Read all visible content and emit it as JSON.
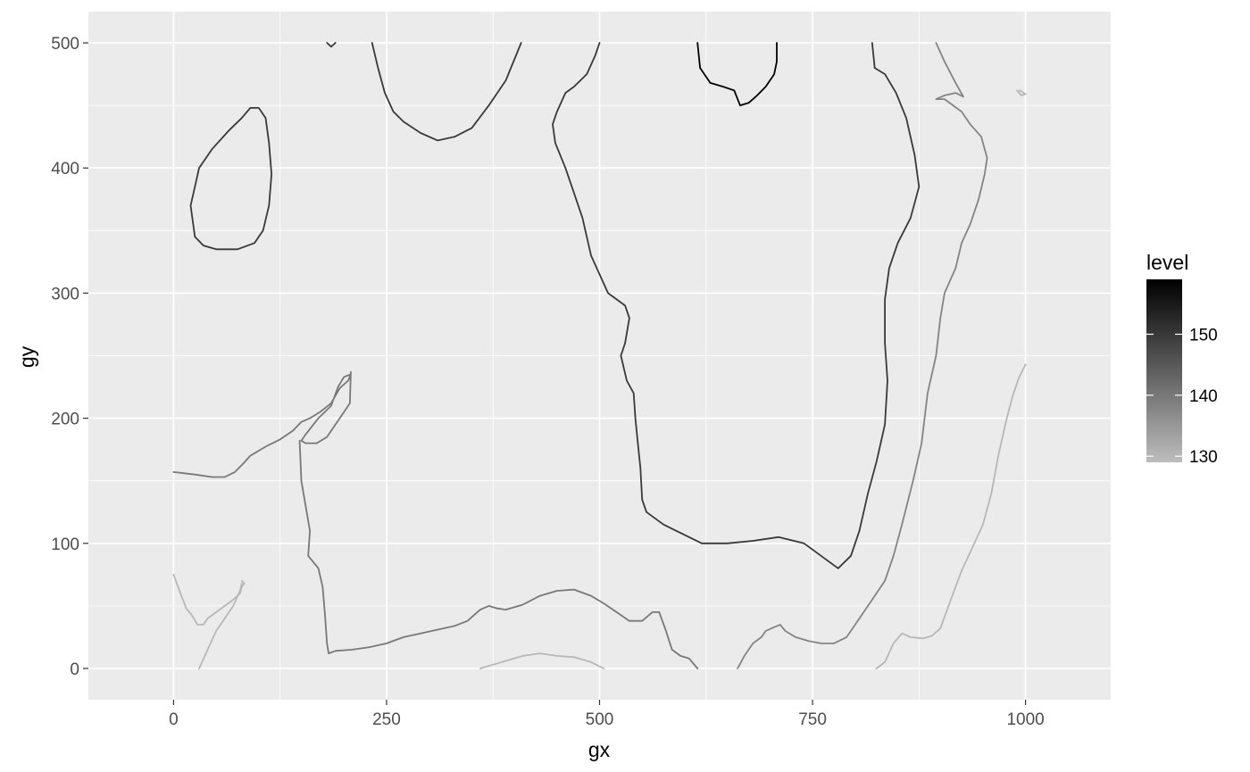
{
  "chart_data": {
    "type": "line",
    "subtype": "contour",
    "title": "",
    "xlabel": "gx",
    "ylabel": "gy",
    "xlim": [
      -100,
      1100
    ],
    "ylim": [
      -25,
      525
    ],
    "x_ticks": [
      0,
      250,
      500,
      750,
      1000
    ],
    "x_tick_labels": [
      "0",
      "250",
      "500",
      "750",
      "1000"
    ],
    "y_ticks": [
      0,
      100,
      200,
      300,
      400,
      500
    ],
    "y_tick_labels": [
      "0",
      "100",
      "200",
      "300",
      "400",
      "500"
    ],
    "grid": true,
    "background": "#ebebeb",
    "grid_color": "#ffffff",
    "legend": {
      "title": "level",
      "placement": "right",
      "type": "colorbar",
      "range": [
        129,
        159
      ],
      "ticks": [
        130,
        140,
        150
      ],
      "tick_labels": [
        "130",
        "140",
        "150"
      ],
      "low_color": "#bdbdbd",
      "high_color": "#000000"
    },
    "series": [
      {
        "level": 130,
        "points": [
          [
            0,
            75
          ],
          [
            8,
            60
          ],
          [
            15,
            48
          ],
          [
            22,
            42
          ],
          [
            28,
            35
          ],
          [
            35,
            35
          ],
          [
            40,
            40
          ],
          [
            50,
            45
          ],
          [
            60,
            50
          ],
          [
            70,
            55
          ],
          [
            78,
            60
          ],
          [
            80,
            65
          ],
          [
            83,
            68
          ],
          [
            80,
            70
          ]
        ]
      },
      {
        "level": 130,
        "points": [
          [
            30,
            0
          ],
          [
            40,
            15
          ],
          [
            50,
            30
          ],
          [
            60,
            40
          ],
          [
            70,
            50
          ],
          [
            78,
            62
          ],
          [
            80,
            68
          ]
        ]
      },
      {
        "level": 130,
        "points": [
          [
            360,
            0
          ],
          [
            375,
            3
          ],
          [
            390,
            6
          ],
          [
            410,
            10
          ],
          [
            430,
            12
          ],
          [
            450,
            10
          ],
          [
            470,
            9
          ],
          [
            490,
            5
          ],
          [
            505,
            0
          ]
        ]
      },
      {
        "level": 130,
        "points": [
          [
            825,
            0
          ],
          [
            835,
            5
          ],
          [
            845,
            20
          ],
          [
            855,
            28
          ],
          [
            865,
            25
          ],
          [
            880,
            24
          ],
          [
            890,
            26
          ],
          [
            900,
            32
          ],
          [
            915,
            60
          ],
          [
            925,
            78
          ],
          [
            940,
            100
          ],
          [
            950,
            115
          ],
          [
            960,
            140
          ],
          [
            968,
            170
          ],
          [
            978,
            200
          ],
          [
            985,
            218
          ],
          [
            992,
            232
          ],
          [
            1000,
            243
          ]
        ]
      },
      {
        "level": 130,
        "points": [
          [
            993,
            462
          ],
          [
            1000,
            459
          ],
          [
            995,
            458
          ],
          [
            990,
            462
          ]
        ]
      },
      {
        "level": 138,
        "points": [
          [
            895,
            500
          ],
          [
            905,
            485
          ],
          [
            918,
            468
          ],
          [
            927,
            457
          ],
          [
            918,
            460
          ],
          [
            905,
            458
          ],
          [
            895,
            455
          ],
          [
            905,
            455
          ],
          [
            915,
            450
          ],
          [
            925,
            445
          ],
          [
            935,
            435
          ],
          [
            948,
            425
          ],
          [
            955,
            408
          ],
          [
            952,
            395
          ],
          [
            945,
            375
          ],
          [
            935,
            355
          ],
          [
            925,
            340
          ],
          [
            918,
            320
          ],
          [
            905,
            300
          ],
          [
            900,
            280
          ],
          [
            895,
            250
          ],
          [
            885,
            220
          ],
          [
            878,
            180
          ],
          [
            868,
            150
          ],
          [
            855,
            115
          ],
          [
            845,
            90
          ],
          [
            835,
            70
          ],
          [
            815,
            50
          ],
          [
            800,
            35
          ],
          [
            790,
            25
          ],
          [
            775,
            20
          ],
          [
            760,
            20
          ],
          [
            745,
            22
          ],
          [
            730,
            25
          ],
          [
            718,
            30
          ],
          [
            712,
            35
          ],
          [
            705,
            33
          ],
          [
            695,
            30
          ],
          [
            690,
            25
          ],
          [
            680,
            20
          ],
          [
            670,
            10
          ],
          [
            662,
            0
          ]
        ]
      },
      {
        "level": 140,
        "points": [
          [
            0,
            157
          ],
          [
            25,
            155
          ],
          [
            45,
            153
          ],
          [
            60,
            153
          ],
          [
            72,
            157
          ],
          [
            82,
            164
          ],
          [
            90,
            170
          ],
          [
            100,
            174
          ],
          [
            110,
            178
          ],
          [
            125,
            183
          ],
          [
            140,
            190
          ],
          [
            150,
            197
          ],
          [
            160,
            200
          ],
          [
            172,
            205
          ],
          [
            185,
            212
          ],
          [
            195,
            224
          ],
          [
            205,
            230
          ],
          [
            208,
            235
          ],
          [
            200,
            233
          ],
          [
            193,
            225
          ],
          [
            185,
            210
          ],
          [
            170,
            200
          ],
          [
            155,
            187
          ],
          [
            150,
            182
          ],
          [
            155,
            180
          ],
          [
            168,
            180
          ],
          [
            180,
            185
          ],
          [
            190,
            195
          ],
          [
            200,
            205
          ],
          [
            207,
            212
          ],
          [
            208,
            237
          ]
        ]
      },
      {
        "level": 140,
        "points": [
          [
            148,
            182
          ],
          [
            150,
            150
          ],
          [
            155,
            130
          ],
          [
            160,
            110
          ],
          [
            158,
            90
          ],
          [
            170,
            80
          ],
          [
            175,
            65
          ],
          [
            178,
            40
          ],
          [
            180,
            20
          ],
          [
            182,
            12
          ],
          [
            190,
            14
          ],
          [
            210,
            15
          ],
          [
            230,
            17
          ],
          [
            250,
            20
          ],
          [
            270,
            25
          ],
          [
            290,
            28
          ],
          [
            310,
            31
          ],
          [
            330,
            34
          ],
          [
            345,
            38
          ],
          [
            360,
            47
          ],
          [
            370,
            50
          ],
          [
            380,
            48
          ],
          [
            390,
            47
          ],
          [
            410,
            51
          ],
          [
            430,
            58
          ],
          [
            450,
            62
          ],
          [
            470,
            63
          ],
          [
            490,
            58
          ],
          [
            505,
            52
          ],
          [
            520,
            45
          ],
          [
            535,
            38
          ],
          [
            550,
            38
          ],
          [
            562,
            45
          ],
          [
            570,
            45
          ],
          [
            578,
            30
          ],
          [
            585,
            15
          ],
          [
            595,
            10
          ],
          [
            605,
            8
          ],
          [
            615,
            0
          ]
        ]
      },
      {
        "level": 150,
        "points": [
          [
            20,
            370
          ],
          [
            25,
            345
          ],
          [
            35,
            338
          ],
          [
            50,
            335
          ],
          [
            75,
            335
          ],
          [
            95,
            340
          ],
          [
            105,
            350
          ],
          [
            112,
            370
          ],
          [
            115,
            395
          ],
          [
            112,
            420
          ],
          [
            108,
            440
          ],
          [
            100,
            448
          ],
          [
            90,
            448
          ],
          [
            80,
            440
          ],
          [
            65,
            430
          ],
          [
            45,
            415
          ],
          [
            30,
            400
          ],
          [
            25,
            385
          ],
          [
            20,
            370
          ]
        ]
      },
      {
        "level": 150,
        "points": [
          [
            190,
            500
          ],
          [
            185,
            497
          ],
          [
            180,
            500
          ]
        ]
      },
      {
        "level": 150,
        "points": [
          [
            233,
            500
          ],
          [
            240,
            480
          ],
          [
            248,
            460
          ],
          [
            258,
            445
          ],
          [
            270,
            437
          ],
          [
            290,
            428
          ],
          [
            310,
            422
          ],
          [
            330,
            425
          ],
          [
            350,
            432
          ],
          [
            370,
            450
          ],
          [
            390,
            470
          ],
          [
            408,
            500
          ]
        ]
      },
      {
        "level": 150,
        "points": [
          [
            500,
            500
          ],
          [
            495,
            490
          ],
          [
            485,
            475
          ],
          [
            470,
            465
          ],
          [
            460,
            460
          ],
          [
            450,
            445
          ],
          [
            445,
            435
          ],
          [
            448,
            420
          ],
          [
            460,
            400
          ],
          [
            470,
            380
          ],
          [
            480,
            360
          ],
          [
            490,
            330
          ],
          [
            500,
            315
          ],
          [
            510,
            300
          ],
          [
            530,
            290
          ],
          [
            535,
            280
          ],
          [
            530,
            260
          ],
          [
            525,
            250
          ],
          [
            532,
            230
          ],
          [
            540,
            220
          ],
          [
            542,
            200
          ],
          [
            545,
            180
          ],
          [
            548,
            160
          ],
          [
            550,
            135
          ],
          [
            555,
            125
          ],
          [
            565,
            120
          ],
          [
            575,
            115
          ],
          [
            590,
            110
          ],
          [
            605,
            105
          ],
          [
            620,
            100
          ],
          [
            650,
            100
          ],
          [
            680,
            102
          ],
          [
            710,
            105
          ],
          [
            740,
            100
          ],
          [
            760,
            90
          ],
          [
            780,
            80
          ],
          [
            795,
            90
          ],
          [
            805,
            110
          ],
          [
            815,
            140
          ],
          [
            825,
            165
          ],
          [
            835,
            195
          ],
          [
            838,
            230
          ],
          [
            835,
            260
          ],
          [
            835,
            295
          ],
          [
            840,
            320
          ],
          [
            850,
            340
          ],
          [
            865,
            360
          ],
          [
            875,
            385
          ],
          [
            870,
            410
          ],
          [
            860,
            440
          ],
          [
            848,
            460
          ],
          [
            835,
            475
          ],
          [
            823,
            480
          ],
          [
            820,
            500
          ]
        ]
      },
      {
        "level": 159,
        "points": [
          [
            615,
            500
          ],
          [
            618,
            480
          ],
          [
            630,
            468
          ],
          [
            645,
            465
          ],
          [
            658,
            462
          ],
          [
            665,
            450
          ],
          [
            675,
            452
          ],
          [
            685,
            458
          ],
          [
            695,
            465
          ],
          [
            705,
            475
          ],
          [
            708,
            485
          ],
          [
            708,
            500
          ]
        ]
      }
    ]
  }
}
